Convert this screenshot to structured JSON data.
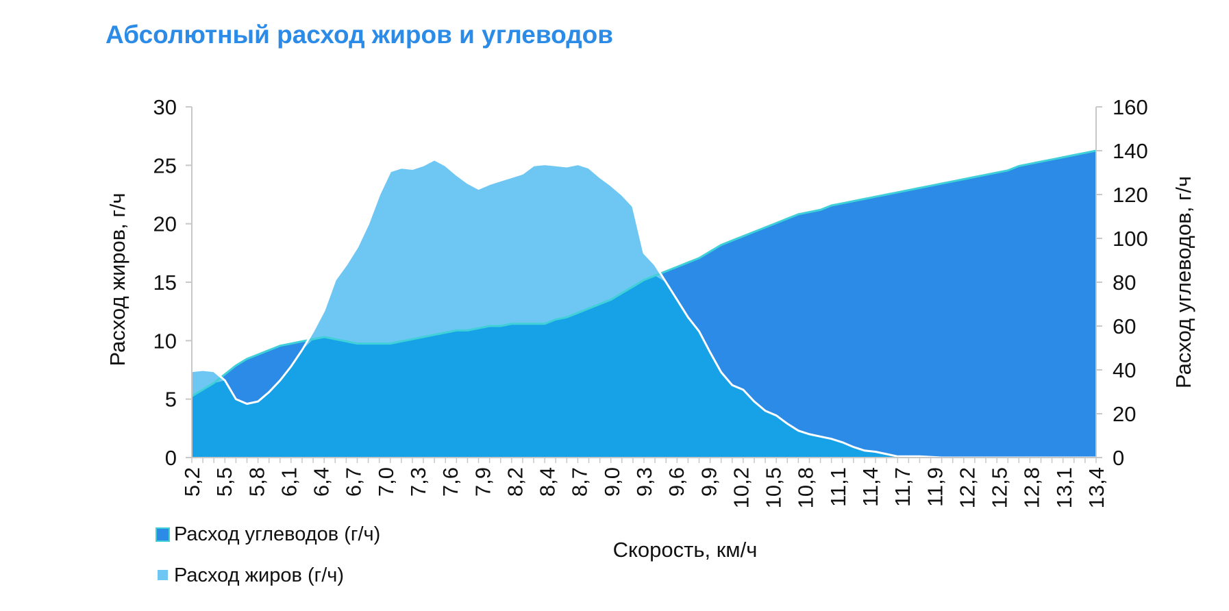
{
  "chart_data": {
    "type": "area",
    "title": "Абсолютный расход жиров и углеводов",
    "xlabel": "Скорость, км/ч",
    "ylabel_left": "Расход жиров, г/ч",
    "ylabel_right": "Расход углеводов, г/ч",
    "ylim_left": [
      0,
      30
    ],
    "ylim_right": [
      0,
      160
    ],
    "yticks_left": [
      "0",
      "5",
      "10",
      "15",
      "20",
      "25",
      "30"
    ],
    "yticks_right": [
      "0",
      "20",
      "40",
      "60",
      "80",
      "100",
      "120",
      "140",
      "160"
    ],
    "x": [
      5.2,
      5.3,
      5.4,
      5.5,
      5.6,
      5.7,
      5.8,
      5.9,
      6.0,
      6.1,
      6.2,
      6.3,
      6.4,
      6.5,
      6.6,
      6.7,
      6.8,
      6.9,
      7.0,
      7.1,
      7.2,
      7.3,
      7.4,
      7.5,
      7.6,
      7.7,
      7.8,
      7.9,
      8.0,
      8.1,
      8.2,
      8.3,
      8.4,
      8.5,
      8.6,
      8.7,
      8.8,
      8.9,
      9.0,
      9.1,
      9.2,
      9.3,
      9.4,
      9.5,
      9.6,
      9.7,
      9.8,
      9.9,
      10.0,
      10.1,
      10.2,
      10.3,
      10.4,
      10.5,
      10.6,
      10.7,
      10.8,
      10.9,
      11.0,
      11.1,
      11.2,
      11.3,
      11.4,
      11.5,
      11.6,
      11.7,
      11.8,
      11.9,
      12.0,
      12.1,
      12.2,
      12.3,
      12.4,
      12.5,
      12.6,
      12.7,
      12.8,
      12.9,
      13.0,
      13.1,
      13.2,
      13.3,
      13.4
    ],
    "xtick_labels": [
      "5,2",
      "5,5",
      "5,8",
      "6,1",
      "6,4",
      "6,7",
      "7,0",
      "7,3",
      "7,6",
      "7,9",
      "8,2",
      "8,4",
      "8,7",
      "9,0",
      "9,3",
      "9,6",
      "9,9",
      "10,2",
      "10,5",
      "10,8",
      "11,1",
      "11,4",
      "11,7",
      "11,9",
      "12,2",
      "12,5",
      "12,8",
      "13,1",
      "13,4"
    ],
    "series": [
      {
        "name": "Расход углеводов (г/ч)",
        "axis": "right",
        "color": "#2b8be6",
        "values": [
          28,
          31,
          34,
          38,
          42,
          45,
          47,
          49,
          51,
          52,
          53,
          54,
          55,
          54,
          53,
          52,
          52,
          52,
          52,
          53,
          54,
          55,
          56,
          57,
          58,
          58,
          59,
          60,
          60,
          61,
          61,
          61,
          61,
          63,
          64,
          66,
          68,
          70,
          72,
          75,
          78,
          81,
          83,
          85,
          87,
          89,
          91,
          94,
          97,
          99,
          101,
          103,
          105,
          107,
          109,
          111,
          112,
          113,
          115,
          116,
          117,
          118,
          119,
          120,
          121,
          122,
          123,
          124,
          125,
          126,
          127,
          128,
          129,
          130,
          131,
          133,
          134,
          135,
          136,
          137,
          138,
          139,
          140
        ]
      },
      {
        "name": "Расход жиров (г/ч)",
        "axis": "left",
        "color": "#6ec6f2",
        "values": [
          7.4,
          7.5,
          7.4,
          6.6,
          5.0,
          4.6,
          4.8,
          5.6,
          6.6,
          7.8,
          9.2,
          10.8,
          12.6,
          15.2,
          16.5,
          18.0,
          20.0,
          22.5,
          24.5,
          24.8,
          24.7,
          25.0,
          25.5,
          25.0,
          24.2,
          23.5,
          23.0,
          23.4,
          23.7,
          24.0,
          24.3,
          25.0,
          25.1,
          25.0,
          24.9,
          25.1,
          24.8,
          24.0,
          23.3,
          22.5,
          21.5,
          17.5,
          16.5,
          15.0,
          13.5,
          12.0,
          10.8,
          9.0,
          7.3,
          6.2,
          5.8,
          4.8,
          4.0,
          3.6,
          2.9,
          2.3,
          2.0,
          1.8,
          1.6,
          1.3,
          0.9,
          0.6,
          0.5,
          0.3,
          0.1,
          0.1,
          0.1,
          0.05,
          0,
          0,
          0,
          0,
          0,
          0,
          0,
          0,
          0,
          0,
          0,
          0,
          0,
          0,
          0
        ]
      }
    ],
    "overlap_color": "#17a2e8",
    "outline_color": "#3fd0d8",
    "grid": false,
    "legend_position": "bottom-left"
  }
}
